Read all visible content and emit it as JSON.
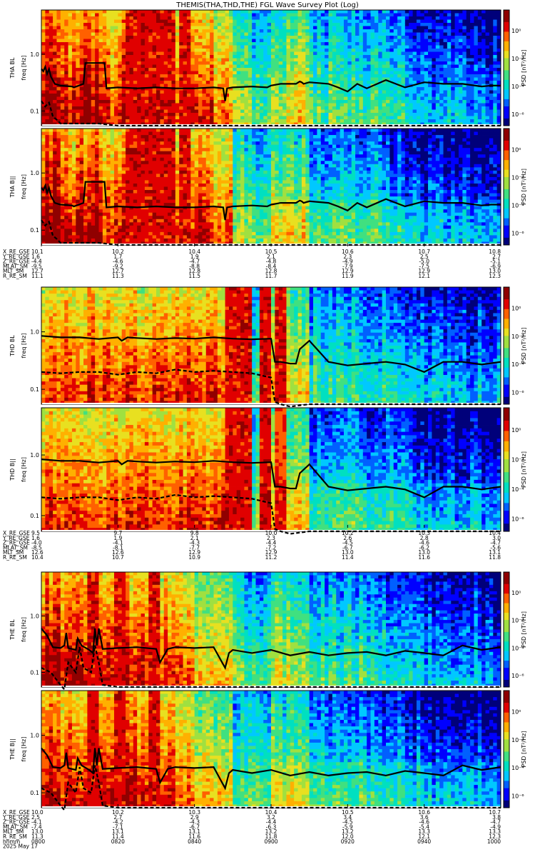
{
  "title": "THEMIS(THA,THD,THE) FGL Wave Survey Plot (Log)",
  "colors": {
    "colormap": [
      "#00007a",
      "#0000ff",
      "#0060ff",
      "#00c8ff",
      "#00e0c0",
      "#40e080",
      "#a0e040",
      "#e8e020",
      "#ffb000",
      "#ff6000",
      "#e00000",
      "#900000"
    ],
    "line": "#000000"
  },
  "chart_data": [
    {
      "type": "heatmap",
      "probe": "tha",
      "panels": [
        {
          "ylabel_top": "THA BL",
          "ylabel_bottom": "freq [Hz]",
          "colorbar_label": "PSD [nT²/Hz]",
          "colorbar_ticks": [
            "10⁰",
            "10⁻²",
            "10⁻⁴",
            "10⁻⁶"
          ]
        },
        {
          "ylabel_top": "THA B||",
          "ylabel_bottom": "freq [Hz]",
          "colorbar_label": "PSD [nT²/Hz]",
          "colorbar_ticks": [
            "10⁰",
            "10⁻²",
            "10⁻⁴",
            "10⁻⁶"
          ]
        }
      ],
      "yticks": [
        "1.0",
        "0.1"
      ],
      "xrange_min": [
        0,
        120
      ],
      "profile": [
        0.9,
        0.8,
        0.85,
        0.75,
        0.8,
        0.85,
        0.8,
        0.75,
        0.8,
        0.7,
        0.45,
        0.35,
        0.5,
        0.55,
        0.35,
        0.4,
        0.35,
        0.35,
        0.3,
        0.25,
        0.2,
        0.2,
        0.2,
        0.15
      ],
      "bands": [
        [
          22,
          34
        ],
        [
          36,
          38.5
        ]
      ],
      "solid_line": {
        "x": [
          0,
          1,
          2,
          3,
          4,
          5,
          7,
          10,
          16,
          17,
          22,
          23,
          33,
          34,
          40,
          50,
          60,
          70,
          80,
          90,
          95,
          96,
          97,
          100,
          110,
          118,
          120,
          125,
          130,
          133,
          135,
          136,
          137,
          140,
          150,
          155,
          160,
          165,
          170,
          180,
          190,
          200,
          210,
          220,
          230,
          235,
          240
        ],
        "y": [
          0.55,
          0.5,
          0.6,
          0.45,
          0.55,
          0.4,
          0.3,
          0.28,
          0.27,
          0.26,
          0.3,
          0.7,
          0.7,
          0.25,
          0.26,
          0.25,
          0.26,
          0.25,
          0.25,
          0.26,
          0.25,
          0.15,
          0.25,
          0.26,
          0.27,
          0.26,
          0.28,
          0.3,
          0.3,
          0.3,
          0.33,
          0.32,
          0.3,
          0.32,
          0.3,
          0.26,
          0.22,
          0.3,
          0.25,
          0.35,
          0.26,
          0.32,
          0.3,
          0.3,
          0.27,
          0.28,
          0.28
        ]
      },
      "dashed_line": {
        "x": [
          0,
          2,
          4,
          6,
          8,
          10,
          20,
          30,
          40,
          60,
          80,
          96,
          97,
          100,
          120,
          140,
          160,
          180,
          200,
          220,
          240
        ],
        "y": [
          0.15,
          0.12,
          0.14,
          0.08,
          0.07,
          0.06,
          0.06,
          0.06,
          0.055,
          0.055,
          0.055,
          0.055,
          0.055,
          0.055,
          0.055,
          0.055,
          0.055,
          0.055,
          0.055,
          0.055,
          0.055
        ]
      },
      "ephemeris": {
        "labels": [
          "X_RE_GSE",
          "Y_RE_GSE",
          "Z_RE_GSE",
          "MLAT_SM",
          "MLT_SM",
          "R_RE_SM"
        ],
        "columns": [
          [
            "10.1",
            "1.6",
            "-4.4",
            "-9.5",
            "12.7",
            "11.1"
          ],
          [
            "10.2",
            "1.7",
            "-4.6",
            "-9.2",
            "12.7",
            "11.3"
          ],
          [
            "10.4",
            "1.9",
            "-4.7",
            "-8.8",
            "12.8",
            "11.5"
          ],
          [
            "10.5",
            "2.1",
            "-4.8",
            "-8.4",
            "12.8",
            "11.7"
          ],
          [
            "10.6",
            "2.3",
            "-4.9",
            "-7.9",
            "12.9",
            "11.9"
          ],
          [
            "10.7",
            "2.5",
            "-5.0",
            "-7.5",
            "12.9",
            "12.1"
          ],
          [
            "10.8",
            "2.7",
            "-5.1",
            "-6.9",
            "13.0",
            "12.3"
          ]
        ]
      }
    },
    {
      "type": "heatmap",
      "probe": "thd",
      "panels": [
        {
          "ylabel_top": "THD BL",
          "ylabel_bottom": "freq [Hz]",
          "colorbar_label": "PSD [nT²/Hz]",
          "colorbar_ticks": [
            "10⁰",
            "10⁻²",
            "10⁻⁴",
            "10⁻⁶"
          ]
        },
        {
          "ylabel_top": "THD B||",
          "ylabel_bottom": "freq [Hz]",
          "colorbar_label": "PSD [nT²/Hz]",
          "colorbar_ticks": [
            "10⁰",
            "10⁻²",
            "10⁻⁴",
            "10⁻⁶"
          ]
        }
      ],
      "yticks": [
        "1.0",
        "0.1"
      ],
      "xrange_min": [
        0,
        120
      ],
      "profile": [
        0.75,
        0.75,
        0.75,
        0.75,
        0.75,
        0.75,
        0.75,
        0.75,
        0.75,
        0.75,
        0.5,
        0.4,
        0.55,
        0.55,
        0.35,
        0.35,
        0.35,
        0.3,
        0.3,
        0.25,
        0.2,
        0.2,
        0.2,
        0.2
      ],
      "bands": [
        [
          48,
          54
        ],
        [
          57,
          59
        ],
        [
          61,
          63
        ]
      ],
      "solid_line": {
        "x": [
          0,
          10,
          20,
          30,
          40,
          42,
          45,
          50,
          60,
          70,
          80,
          90,
          100,
          110,
          120,
          122,
          125,
          130,
          133,
          135,
          140,
          150,
          160,
          170,
          180,
          190,
          200,
          210,
          220,
          230,
          240
        ],
        "y": [
          0.85,
          0.8,
          0.8,
          0.75,
          0.8,
          0.7,
          0.8,
          0.78,
          0.75,
          0.78,
          0.76,
          0.8,
          0.76,
          0.74,
          0.76,
          0.3,
          0.3,
          0.28,
          0.28,
          0.5,
          0.7,
          0.3,
          0.26,
          0.28,
          0.3,
          0.27,
          0.2,
          0.3,
          0.3,
          0.27,
          0.3
        ]
      },
      "dashed_line": {
        "x": [
          0,
          10,
          20,
          30,
          40,
          50,
          60,
          70,
          80,
          90,
          100,
          110,
          120,
          122,
          125,
          130,
          140,
          150,
          160,
          180,
          200,
          220,
          240
        ],
        "y": [
          0.2,
          0.19,
          0.2,
          0.2,
          0.18,
          0.2,
          0.19,
          0.22,
          0.2,
          0.21,
          0.2,
          0.19,
          0.16,
          0.06,
          0.055,
          0.05,
          0.055,
          0.055,
          0.055,
          0.055,
          0.055,
          0.055,
          0.055
        ]
      },
      "ephemeris": {
        "labels": [
          "X_RE_GSE",
          "Y_RE_GSE",
          "Z_RE_GSE",
          "MLAT_SM",
          "MLT_SM",
          "R_RE_SM"
        ],
        "columns": [
          [
            "9.5",
            "1.6",
            "-4.0",
            "-8.5",
            "12.6",
            "10.4"
          ],
          [
            "9.7",
            "1.9",
            "-4.1",
            "-8.1",
            "12.6",
            "10.7"
          ],
          [
            "9.8",
            "2.1",
            "-4.3",
            "-7.7",
            "12.9",
            "10.9"
          ],
          [
            "10.0",
            "2.3",
            "-4.4",
            "-7.2",
            "12.9",
            "11.2"
          ],
          [
            "10.2",
            "2.6",
            "-4.5",
            "-6.7",
            "13.0",
            "11.4"
          ],
          [
            "10.3",
            "2.8",
            "-4.6",
            "-6.2",
            "13.0",
            "11.6"
          ],
          [
            "10.4",
            "3.0",
            "-4.7",
            "-5.6",
            "13.1",
            "11.8"
          ]
        ]
      }
    },
    {
      "type": "heatmap",
      "probe": "the",
      "panels": [
        {
          "ylabel_top": "THE BL",
          "ylabel_bottom": "freq [Hz]",
          "colorbar_label": "PSD [nT²/Hz]",
          "colorbar_ticks": [
            "10⁰",
            "10⁻²",
            "10⁻⁴",
            "10⁻⁶"
          ]
        },
        {
          "ylabel_top": "THE B||",
          "ylabel_bottom": "freq [Hz]",
          "colorbar_label": "PSD [nT²/Hz]",
          "colorbar_ticks": [
            "10⁰",
            "10⁻²",
            "10⁻⁴",
            "10⁻⁶"
          ]
        }
      ],
      "yticks": [
        "1.0",
        "0.1"
      ],
      "xrange_min": [
        0,
        120
      ],
      "profile": [
        0.85,
        0.8,
        0.8,
        0.75,
        0.8,
        0.75,
        0.75,
        0.7,
        0.6,
        0.55,
        0.4,
        0.35,
        0.5,
        0.5,
        0.35,
        0.35,
        0.35,
        0.3,
        0.3,
        0.25,
        0.2,
        0.2,
        0.2,
        0.15
      ],
      "bands": [
        [
          12,
          14
        ],
        [
          19,
          21
        ],
        [
          28,
          30
        ]
      ],
      "solid_line": {
        "x": [
          0,
          3,
          6,
          10,
          12,
          13,
          14,
          18,
          19,
          21,
          25,
          27,
          28,
          29,
          30,
          32,
          40,
          50,
          60,
          62,
          66,
          70,
          80,
          90,
          96,
          98,
          100,
          110,
          120,
          130,
          140,
          150,
          160,
          170,
          180,
          190,
          200,
          210,
          220,
          230,
          240
        ],
        "y": [
          0.6,
          0.45,
          0.28,
          0.27,
          0.3,
          0.5,
          0.27,
          0.25,
          0.4,
          0.3,
          0.25,
          0.22,
          0.6,
          0.3,
          0.6,
          0.26,
          0.27,
          0.28,
          0.26,
          0.15,
          0.26,
          0.28,
          0.27,
          0.28,
          0.12,
          0.22,
          0.25,
          0.22,
          0.25,
          0.2,
          0.23,
          0.2,
          0.22,
          0.23,
          0.2,
          0.24,
          0.22,
          0.2,
          0.3,
          0.25,
          0.28
        ]
      },
      "dashed_line": {
        "x": [
          0,
          5,
          10,
          12,
          14,
          18,
          20,
          22,
          26,
          28,
          30,
          32,
          40,
          60,
          80,
          100,
          120,
          140,
          160,
          180,
          200,
          220,
          240
        ],
        "y": [
          0.12,
          0.1,
          0.06,
          0.05,
          0.15,
          0.1,
          0.28,
          0.12,
          0.1,
          0.3,
          0.15,
          0.06,
          0.055,
          0.055,
          0.055,
          0.055,
          0.055,
          0.055,
          0.055,
          0.055,
          0.055,
          0.055,
          0.055
        ]
      },
      "ephemeris": {
        "labels": [
          "X_RE_GSE",
          "Y_RE_GSE",
          "Z_RE_GSE",
          "MLAT_SM",
          "MLT_SM",
          "R_RE_SM",
          "hhmm",
          "2025 May 17"
        ],
        "columns": [
          [
            "10.0",
            "2.5",
            "-4.1",
            "-7.4",
            "13.0",
            "11.3",
            "0800"
          ],
          [
            "10.2",
            "2.7",
            "-4.2",
            "-7.1",
            "13.1",
            "11.4",
            "0820"
          ],
          [
            "10.3",
            "2.9",
            "-4.3",
            "-6.7",
            "13.1",
            "11.6",
            "0840"
          ],
          [
            "10.4",
            "3.2",
            "-4.4",
            "-6.3",
            "13.2",
            "11.8",
            "0900"
          ],
          [
            "10.5",
            "3.4",
            "-4.5",
            "-5.9",
            "13.2",
            "12.0",
            "0920"
          ],
          [
            "10.6",
            "3.6",
            "-4.6",
            "-5.4",
            "13.3",
            "12.1",
            "0940"
          ],
          [
            "10.7",
            "3.8",
            "-4.7",
            "-4.9",
            "13.3",
            "12.3",
            "1000"
          ]
        ]
      }
    }
  ]
}
